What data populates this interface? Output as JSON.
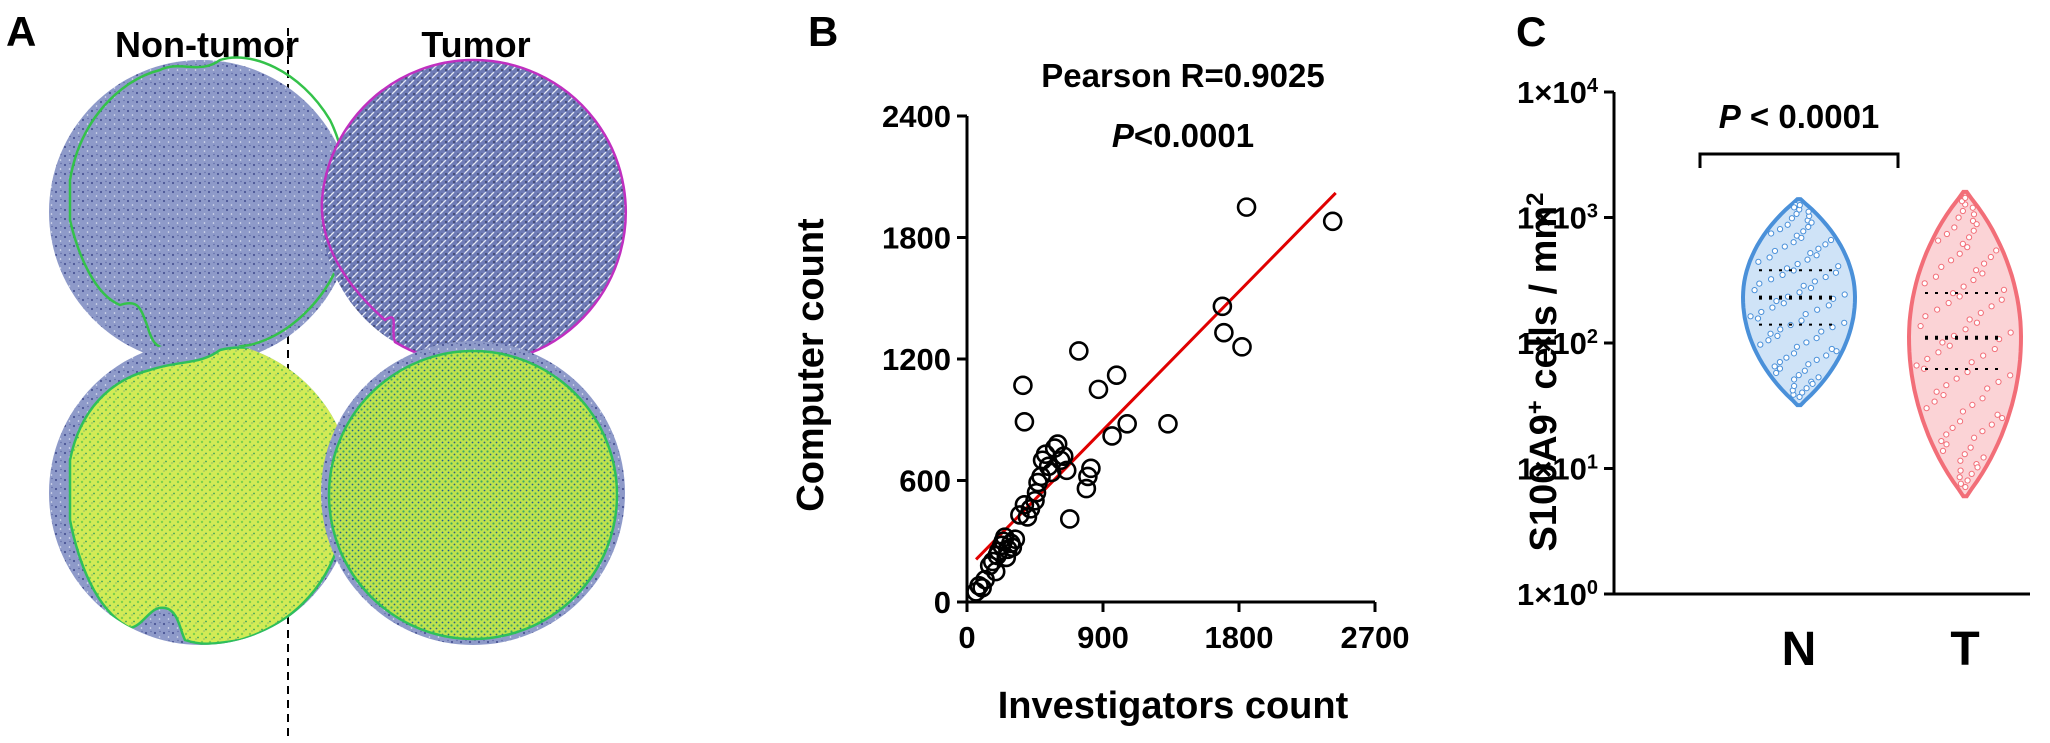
{
  "panel_labels": {
    "a": "A",
    "b": "B",
    "c": "C"
  },
  "panel_a": {
    "col_left": "Non-tumor",
    "col_right": "Tumor",
    "colors": {
      "stain_blue": "#8b97c6",
      "stain_dark": "#3d4680",
      "nontumor_outline": "#34c24a",
      "tumor_outline": "#c030c0",
      "detection_yellow": "#d7ee5a",
      "detection_green": "#2ec05a"
    }
  },
  "chart_data": [
    {
      "type": "scatter",
      "xlabel": "Investigators count",
      "ylabel": "Computer count",
      "annotation_line1": "Pearson R=0.9025",
      "annotation_line2_italic": "P",
      "annotation_line2_rest": "<0.0001",
      "xlim": [
        0,
        2700
      ],
      "ylim": [
        0,
        2400
      ],
      "xticks": [
        0,
        900,
        1800,
        2700
      ],
      "yticks": [
        0,
        600,
        1200,
        1800,
        2400
      ],
      "marker_color": "#000000",
      "regression_color": "#e00000",
      "regression": {
        "x": [
          60,
          2440
        ],
        "y": [
          210,
          2020
        ]
      },
      "points": [
        [
          60,
          50
        ],
        [
          80,
          80
        ],
        [
          100,
          70
        ],
        [
          120,
          110
        ],
        [
          150,
          180
        ],
        [
          170,
          200
        ],
        [
          190,
          150
        ],
        [
          200,
          230
        ],
        [
          210,
          250
        ],
        [
          230,
          280
        ],
        [
          240,
          300
        ],
        [
          250,
          320
        ],
        [
          260,
          220
        ],
        [
          270,
          260
        ],
        [
          290,
          290
        ],
        [
          300,
          270
        ],
        [
          320,
          310
        ],
        [
          350,
          430
        ],
        [
          380,
          480
        ],
        [
          400,
          420
        ],
        [
          420,
          460
        ],
        [
          450,
          500
        ],
        [
          460,
          540
        ],
        [
          470,
          590
        ],
        [
          490,
          620
        ],
        [
          500,
          700
        ],
        [
          520,
          730
        ],
        [
          540,
          670
        ],
        [
          560,
          640
        ],
        [
          580,
          760
        ],
        [
          600,
          780
        ],
        [
          620,
          700
        ],
        [
          640,
          720
        ],
        [
          660,
          650
        ],
        [
          680,
          410
        ],
        [
          370,
          1070
        ],
        [
          380,
          890
        ],
        [
          740,
          1240
        ],
        [
          790,
          560
        ],
        [
          800,
          620
        ],
        [
          820,
          660
        ],
        [
          870,
          1050
        ],
        [
          960,
          820
        ],
        [
          990,
          1120
        ],
        [
          1060,
          880
        ],
        [
          1330,
          880
        ],
        [
          1690,
          1460
        ],
        [
          1700,
          1330
        ],
        [
          1820,
          1260
        ],
        [
          1850,
          1950
        ],
        [
          2420,
          1880
        ]
      ]
    },
    {
      "type": "violin",
      "ylabel_main": "S100A9",
      "ylabel_sup": "+",
      "ylabel_rest": " cells / mm",
      "ylabel_sup2": "2",
      "yscale": "log",
      "ylim": [
        1,
        10000
      ],
      "yticks": [
        {
          "base": "1×10",
          "exp": "0"
        },
        {
          "base": "1×10",
          "exp": "1"
        },
        {
          "base": "1×10",
          "exp": "2"
        },
        {
          "base": "1×10",
          "exp": "3"
        },
        {
          "base": "1×10",
          "exp": "4"
        }
      ],
      "categories": [
        "N",
        "T"
      ],
      "significance_italic": "P",
      "significance_rest": " < 0.0001",
      "series": [
        {
          "category": "N",
          "color": "#4a90d9",
          "fill": "#cfe3f7",
          "min": 32,
          "max": 1400,
          "median": 230,
          "q1": 140,
          "q3": 380
        },
        {
          "category": "T",
          "color": "#f26e78",
          "fill": "#fbd3d6",
          "min": 6,
          "max": 1600,
          "median": 110,
          "q1": 62,
          "q3": 250
        }
      ]
    }
  ]
}
